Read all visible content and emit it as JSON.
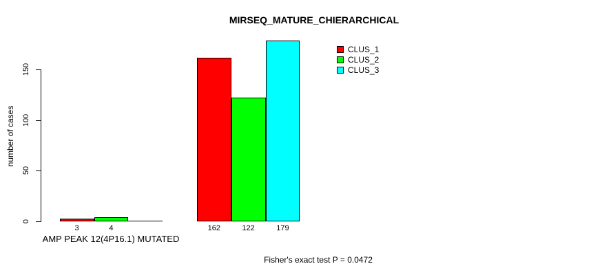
{
  "chart_data": {
    "type": "bar",
    "title": "MIRSEQ_MATURE_CHIERARCHICAL",
    "ylabel": "number of cases",
    "xlabel": "",
    "ylim": [
      0,
      185
    ],
    "yticks": [
      0,
      50,
      100,
      150
    ],
    "grid": false,
    "categories": [
      "AMP PEAK 12(4P16.1) MUTATED",
      ""
    ],
    "series": [
      {
        "name": "CLUS_1",
        "color": "#ff0000",
        "values": [
          3,
          162
        ]
      },
      {
        "name": "CLUS_2",
        "color": "#00ff00",
        "values": [
          4,
          122
        ]
      },
      {
        "name": "CLUS_3",
        "color": "#00ffff",
        "values": [
          0,
          179
        ]
      }
    ],
    "bar_value_labels": [
      [
        "3",
        "4",
        null
      ],
      [
        "162",
        "122",
        "179"
      ]
    ],
    "legend": {
      "position": "top-right",
      "entries": [
        "CLUS_1",
        "CLUS_2",
        "CLUS_3"
      ]
    },
    "annotation": "Fisher's exact test P = 0.0472"
  }
}
